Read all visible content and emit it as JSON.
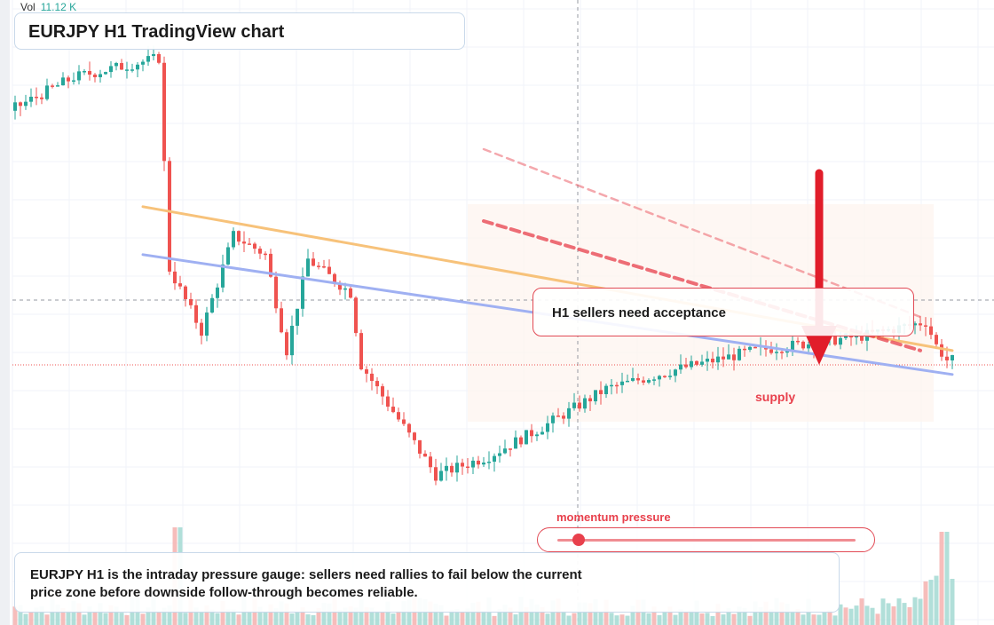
{
  "header": {
    "vol_label": "Vol",
    "vol_value": "11.12 K",
    "title": "EURJPY H1 TradingView chart"
  },
  "annotations": {
    "callout": "H1 sellers need acceptance",
    "zone_label": "supply",
    "gauge_label": "momentum pressure",
    "gauge_level": 0.07,
    "note": "EURJPY H1 is the intraday pressure gauge: sellers need rallies to fail below the current price zone before downside follow-through becomes reliable."
  },
  "colors": {
    "up": "#26a69a",
    "down": "#ef5350",
    "resistance_line": "#f7c27a",
    "support_line": "#9fb0f2",
    "bearish_channel": "#e8404c",
    "arrow": "#e11d2a"
  },
  "chart_data": {
    "type": "candlestick",
    "price_range": [
      0,
      100
    ],
    "candle_pattern": "spike-high, sharp selloff, double bounce, capitulation low, gradual recovery into consolidation near supply",
    "key_points": [
      {
        "bar": 0,
        "price": 88
      },
      {
        "bar": 12,
        "price": 95
      },
      {
        "bar": 28,
        "price": 99
      },
      {
        "bar": 30,
        "price": 55
      },
      {
        "bar": 36,
        "price": 42
      },
      {
        "bar": 42,
        "price": 62
      },
      {
        "bar": 48,
        "price": 58
      },
      {
        "bar": 52,
        "price": 38
      },
      {
        "bar": 56,
        "price": 57
      },
      {
        "bar": 64,
        "price": 50
      },
      {
        "bar": 66,
        "price": 35
      },
      {
        "bar": 74,
        "price": 22
      },
      {
        "bar": 80,
        "price": 12
      },
      {
        "bar": 90,
        "price": 16
      },
      {
        "bar": 100,
        "price": 22
      },
      {
        "bar": 112,
        "price": 30
      },
      {
        "bar": 125,
        "price": 34
      },
      {
        "bar": 140,
        "price": 38
      },
      {
        "bar": 160,
        "price": 41
      },
      {
        "bar": 172,
        "price": 44
      },
      {
        "bar": 174,
        "price": 39
      },
      {
        "bar": 176,
        "price": 36
      }
    ],
    "lines": [
      {
        "name": "resistance",
        "from": {
          "bar": 24,
          "price": 68
        },
        "to": {
          "bar": 176,
          "price": 38
        }
      },
      {
        "name": "support",
        "from": {
          "bar": 24,
          "price": 58
        },
        "to": {
          "bar": 176,
          "price": 33
        }
      },
      {
        "name": "bearish-channel-upper",
        "from": {
          "bar": 88,
          "price": 80
        },
        "to": {
          "bar": 170,
          "price": 45
        }
      },
      {
        "name": "bearish-channel-lower",
        "from": {
          "bar": 88,
          "price": 65
        },
        "to": {
          "bar": 170,
          "price": 38
        }
      }
    ],
    "arrow": {
      "from_price": 75,
      "to_price": 35,
      "bar": 151
    },
    "current_price_marker": 35
  }
}
